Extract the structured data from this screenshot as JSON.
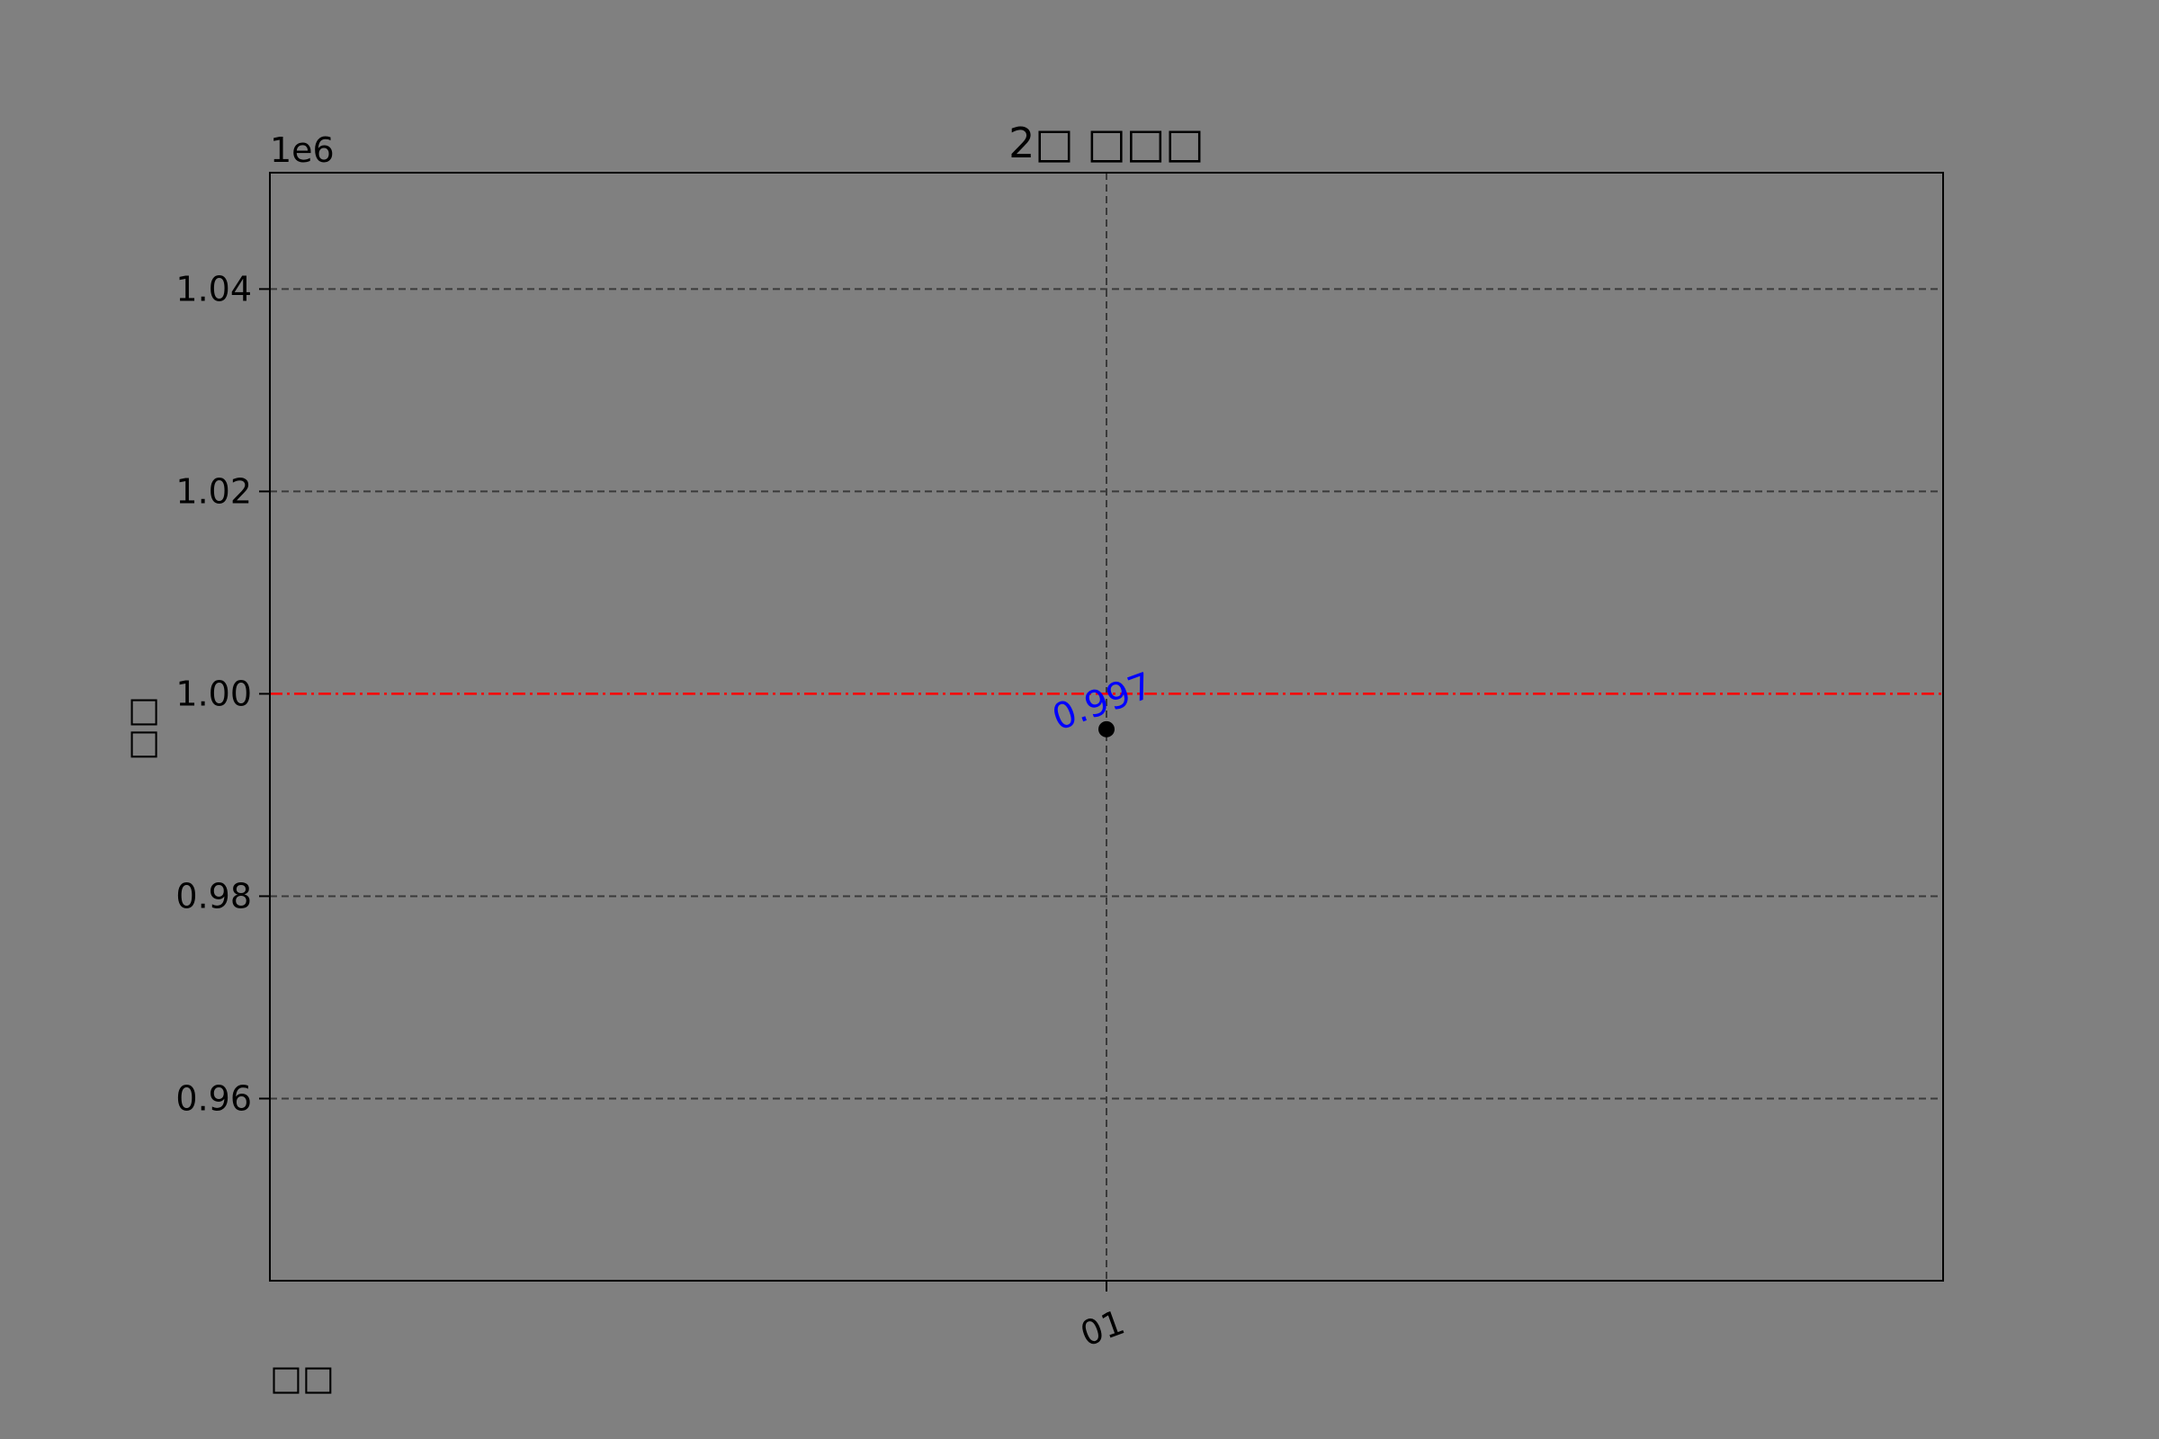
{
  "chart_data": {
    "type": "scatter",
    "title": "2□ □□□",
    "xlabel": "□□",
    "ylabel": "□□",
    "y_offset_label": "1e6",
    "y_multiplier": 1000000,
    "categories": [
      "01"
    ],
    "series": [
      {
        "values": [
          996500
        ]
      }
    ],
    "data_labels": [
      "0.997"
    ],
    "reference_line": {
      "y": 1000000,
      "color": "#ff0000",
      "style": "dash-dot"
    },
    "ylim": [
      942000,
      1051500
    ],
    "yticks": [
      960000,
      980000,
      1000000,
      1020000,
      1040000
    ],
    "ytick_labels": [
      "0.96",
      "0.98",
      "1.00",
      "1.02",
      "1.04"
    ],
    "grid": true,
    "colors": {
      "background": "#808080",
      "marker": "#000000",
      "data_label": "#0000ff",
      "grid": "#3a3a3a",
      "reference_line": "#ff0000",
      "text": "#000000"
    }
  }
}
